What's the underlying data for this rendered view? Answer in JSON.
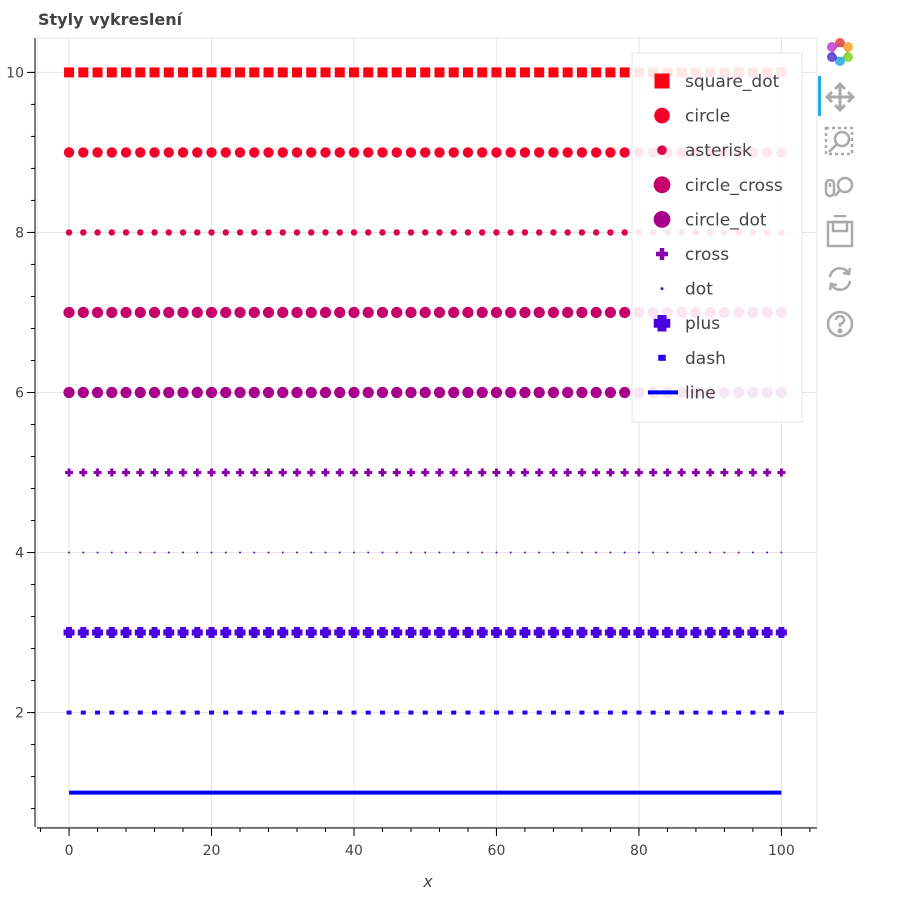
{
  "chart_data": {
    "type": "scatter",
    "title": "Styly vykreslení",
    "xlabel": "x",
    "ylabel": "",
    "xlim": [
      -4.5,
      105
    ],
    "ylim": [
      0.57,
      10.43
    ],
    "x_ticks": [
      0,
      20,
      40,
      60,
      80,
      100
    ],
    "y_ticks": [
      2,
      4,
      6,
      8,
      10
    ],
    "grid": true,
    "legend_position": "top-right",
    "x_values": {
      "start": 0,
      "stop": 100,
      "step": 2
    },
    "series": [
      {
        "name": "square_dot",
        "marker": "square_dot",
        "y": 10,
        "color": "#ff0010"
      },
      {
        "name": "circle",
        "marker": "circle",
        "y": 9,
        "color": "#f5002a"
      },
      {
        "name": "asterisk",
        "marker": "asterisk",
        "y": 8,
        "color": "#e0004a"
      },
      {
        "name": "circle_cross",
        "marker": "circle_cross",
        "y": 7,
        "color": "#c6006a"
      },
      {
        "name": "circle_dot",
        "marker": "circle_dot",
        "y": 6,
        "color": "#a8008a"
      },
      {
        "name": "cross",
        "marker": "cross",
        "y": 5,
        "color": "#8a00aa"
      },
      {
        "name": "dot",
        "marker": "dot",
        "y": 4,
        "color": "#6a00c6"
      },
      {
        "name": "plus",
        "marker": "plus",
        "y": 3,
        "color": "#4a00e0"
      },
      {
        "name": "dash",
        "marker": "dash",
        "y": 2,
        "color": "#2a00f5"
      },
      {
        "name": "line",
        "marker": "line",
        "y": 1,
        "color": "#0000ff"
      }
    ]
  },
  "toolbar": {
    "tools": [
      {
        "name": "bokeh-logo-icon"
      },
      {
        "name": "pan-icon"
      },
      {
        "name": "box-zoom-icon"
      },
      {
        "name": "wheel-zoom-icon"
      },
      {
        "name": "save-icon"
      },
      {
        "name": "reset-icon"
      },
      {
        "name": "help-icon"
      }
    ]
  }
}
